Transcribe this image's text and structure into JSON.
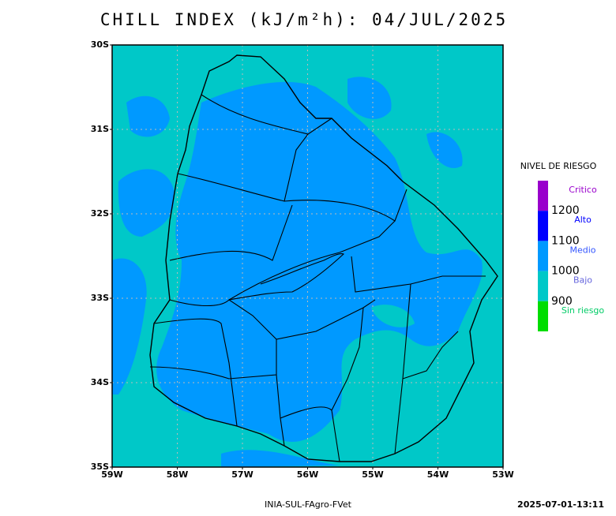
{
  "header": {
    "title": "CHILL INDEX (kJ/m²h): 04/JUL/2025"
  },
  "map": {
    "lat_ticks": [
      "30S",
      "31S",
      "32S",
      "33S",
      "34S",
      "35S"
    ],
    "lon_ticks": [
      "59W",
      "58W",
      "57W",
      "56W",
      "55W",
      "54W",
      "53W"
    ],
    "background_color": "#00c8c8",
    "grid": true
  },
  "legend": {
    "title": "NIVEL DE RIESGO",
    "items": [
      {
        "label": "Critico",
        "color": "#9900cc",
        "label_color": "#9900cc"
      },
      {
        "label": "Alto",
        "color": "#0000ff",
        "label_color": "#0000ff"
      },
      {
        "label": "Medio",
        "color": "#0099ff",
        "label_color": "#3355ff"
      },
      {
        "label": "Bajo",
        "color": "#00c8c8",
        "label_color": "#6666dd"
      },
      {
        "label": "Sin riesgo",
        "color": "#00dd00",
        "label_color": "#00cc66"
      }
    ],
    "thresholds": [
      1200,
      1100,
      1000,
      900
    ]
  },
  "footer": {
    "source": "INIA-SUL-FAgro-FVet",
    "timestamp": "2025-07-01-13:11"
  }
}
